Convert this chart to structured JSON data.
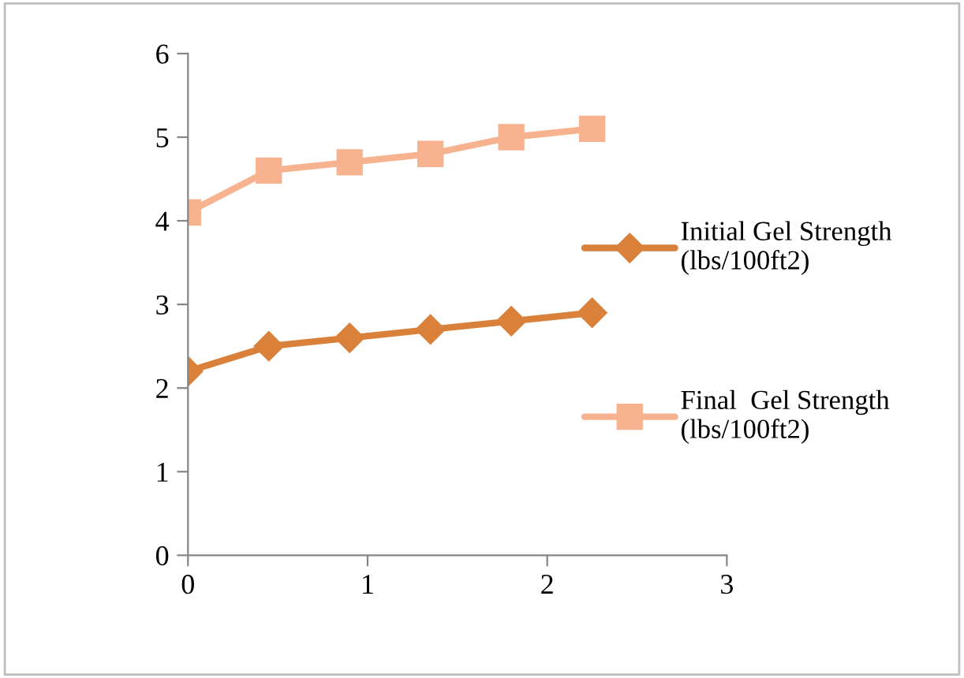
{
  "chart_data": {
    "type": "line",
    "x": [
      0,
      0.45,
      0.9,
      1.35,
      1.8,
      2.25
    ],
    "series": [
      {
        "name": "Initial Gel Strength\n(lbs/100ft2)",
        "color": "#d9813a",
        "marker": "diamond",
        "values": [
          2.2,
          2.5,
          2.6,
          2.7,
          2.8,
          2.9
        ]
      },
      {
        "name": "Final  Gel Strength\n(lbs/100ft2)",
        "color": "#f7b38f",
        "marker": "square",
        "values": [
          4.1,
          4.6,
          4.7,
          4.8,
          5.0,
          5.1
        ]
      }
    ],
    "xlim": [
      0,
      3
    ],
    "xticks": [
      0,
      1,
      2,
      3
    ],
    "ylim": [
      0,
      6
    ],
    "yticks": [
      0,
      1,
      2,
      3,
      4,
      5,
      6
    ],
    "grid": false,
    "legend": "right",
    "line_style": "solid"
  }
}
